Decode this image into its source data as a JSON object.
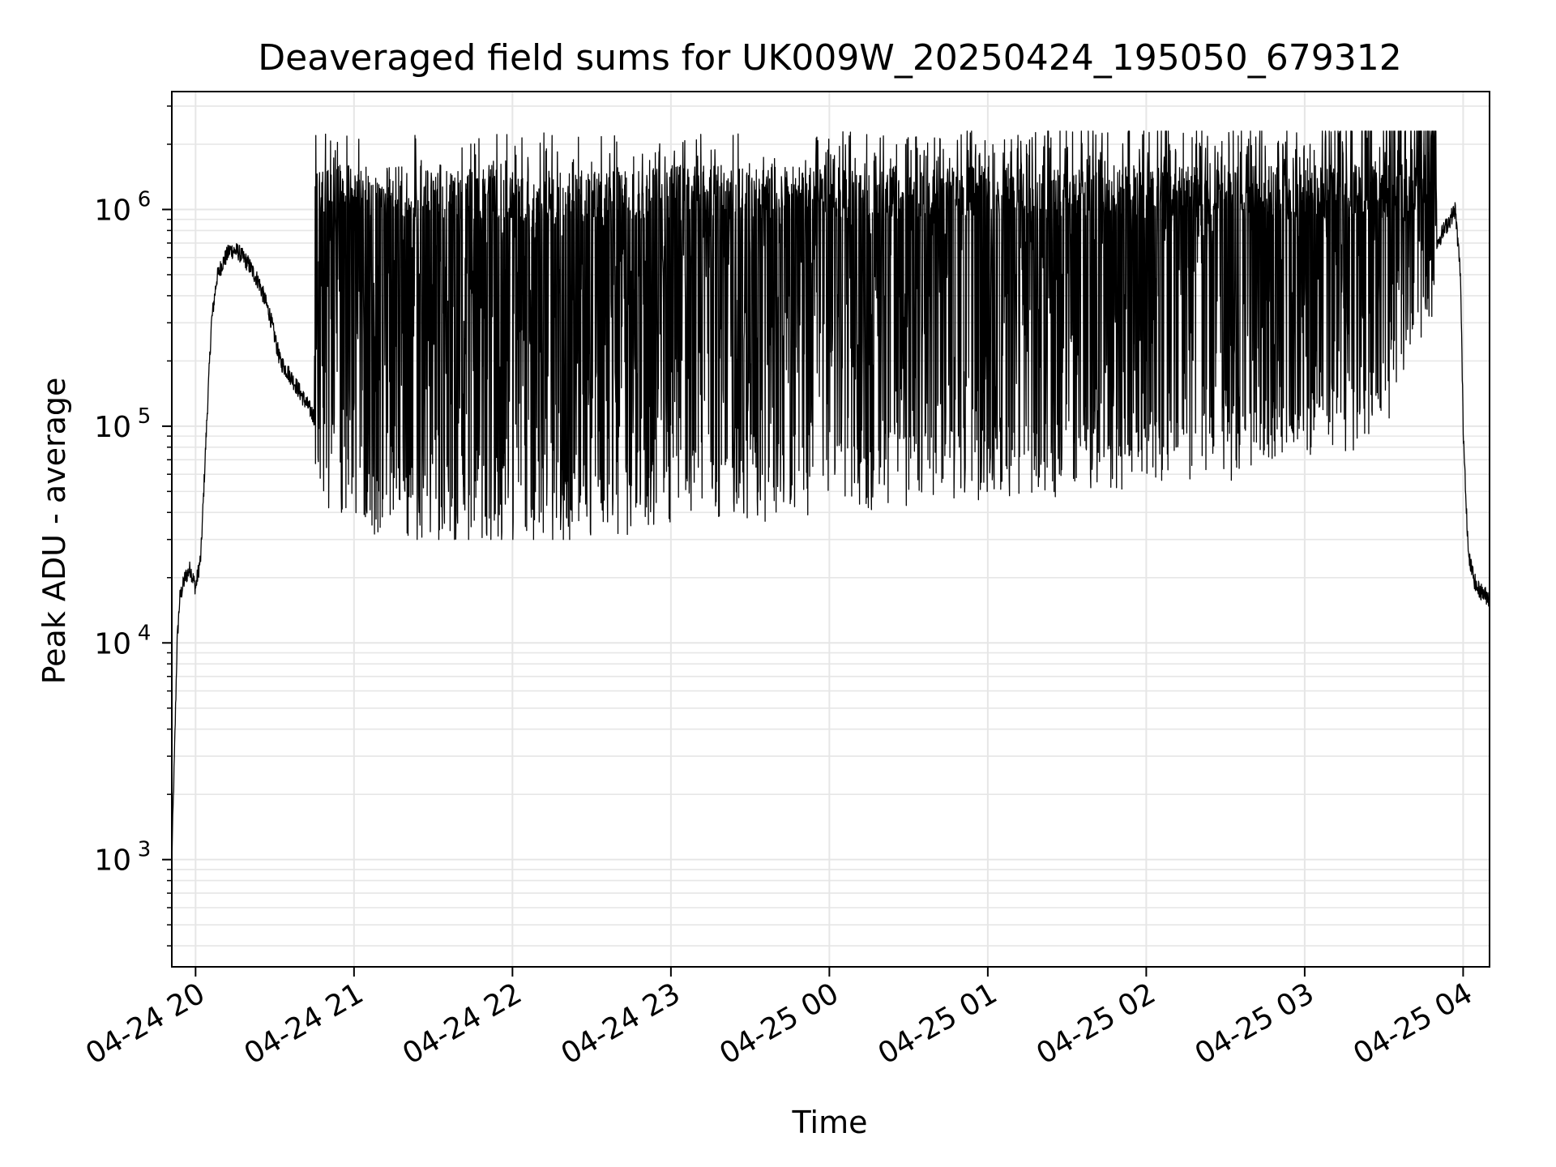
{
  "chart_data": {
    "type": "line",
    "title": "Deaveraged field sums for UK009W_20250424_195050_679312",
    "xlabel": "Time",
    "ylabel": "Peak ADU - average",
    "x_type": "datetime",
    "y_scale": "log",
    "xlim": [
      "2025-04-24T19:51:00",
      "2025-04-25T04:10:00"
    ],
    "ylim": [
      320,
      3500000
    ],
    "grid": true,
    "line_color": "#000000",
    "grid_color": "#e6e6e6",
    "x_ticks": [
      {
        "value": "2025-04-24T20:00:00",
        "label": "04-24 20"
      },
      {
        "value": "2025-04-24T21:00:00",
        "label": "04-24 21"
      },
      {
        "value": "2025-04-24T22:00:00",
        "label": "04-24 22"
      },
      {
        "value": "2025-04-24T23:00:00",
        "label": "04-24 23"
      },
      {
        "value": "2025-04-25T00:00:00",
        "label": "04-25 00"
      },
      {
        "value": "2025-04-25T01:00:00",
        "label": "04-25 01"
      },
      {
        "value": "2025-04-25T02:00:00",
        "label": "04-25 02"
      },
      {
        "value": "2025-04-25T03:00:00",
        "label": "04-25 03"
      },
      {
        "value": "2025-04-25T04:00:00",
        "label": "04-25 04"
      }
    ],
    "y_ticks": [
      {
        "value": 1000,
        "base": "10",
        "exp": "3"
      },
      {
        "value": 10000,
        "base": "10",
        "exp": "4"
      },
      {
        "value": 100000,
        "base": "10",
        "exp": "5"
      },
      {
        "value": 1000000,
        "base": "10",
        "exp": "6"
      }
    ],
    "series": [
      {
        "x": [
          "2025-04-24T19:51:00",
          "2025-04-24T19:52:00",
          "2025-04-24T19:53:00",
          "2025-04-24T19:54:00",
          "2025-04-24T19:56:00",
          "2025-04-24T19:58:00",
          "2025-04-24T20:00:00",
          "2025-04-24T20:02:00",
          "2025-04-24T20:04:00",
          "2025-04-24T20:06:00",
          "2025-04-24T20:08:00",
          "2025-04-24T20:10:00",
          "2025-04-24T20:13:00",
          "2025-04-24T20:16:00",
          "2025-04-24T20:20:00",
          "2025-04-24T20:24:00",
          "2025-04-24T20:28:00",
          "2025-04-24T20:32:00",
          "2025-04-24T20:36:00",
          "2025-04-24T20:40:00",
          "2025-04-24T20:45:00",
          "2025-04-24T20:50:00",
          "2025-04-24T20:55:00",
          "2025-04-24T21:00:00",
          "2025-04-24T21:30:00",
          "2025-04-24T22:00:00",
          "2025-04-24T22:30:00",
          "2025-04-24T23:00:00",
          "2025-04-24T23:30:00",
          "2025-04-25T00:00:00",
          "2025-04-25T00:30:00",
          "2025-04-25T01:00:00",
          "2025-04-25T01:30:00",
          "2025-04-25T02:00:00",
          "2025-04-25T02:30:00",
          "2025-04-25T03:00:00",
          "2025-04-25T03:20:00",
          "2025-04-25T03:30:00",
          "2025-04-25T03:40:00",
          "2025-04-25T03:50:00",
          "2025-04-25T03:55:00",
          "2025-04-25T03:57:00",
          "2025-04-25T03:59:00",
          "2025-04-25T04:00:00",
          "2025-04-25T04:02:00",
          "2025-04-25T04:05:00",
          "2025-04-25T04:10:00"
        ],
        "y": [
          1000,
          3000,
          10000,
          16000,
          20000,
          22000,
          18000,
          25000,
          90000,
          300000,
          480000,
          560000,
          650000,
          640000,
          560000,
          460000,
          330000,
          200000,
          170000,
          140000,
          110000,
          85000,
          70000,
          65000,
          60000,
          55000,
          62000,
          70000,
          75000,
          80000,
          90000,
          95000,
          100000,
          110000,
          120000,
          140000,
          160000,
          200000,
          400000,
          700000,
          900000,
          1000000,
          500000,
          100000,
          25000,
          18000,
          16000
        ],
        "spike_band": {
          "x_range": [
            "2025-04-24T20:45:00",
            "2025-04-25T03:50:00"
          ],
          "y_range": [
            35000,
            1600000
          ],
          "peak_max": 2300000,
          "trough_min": 30000
        }
      }
    ]
  }
}
